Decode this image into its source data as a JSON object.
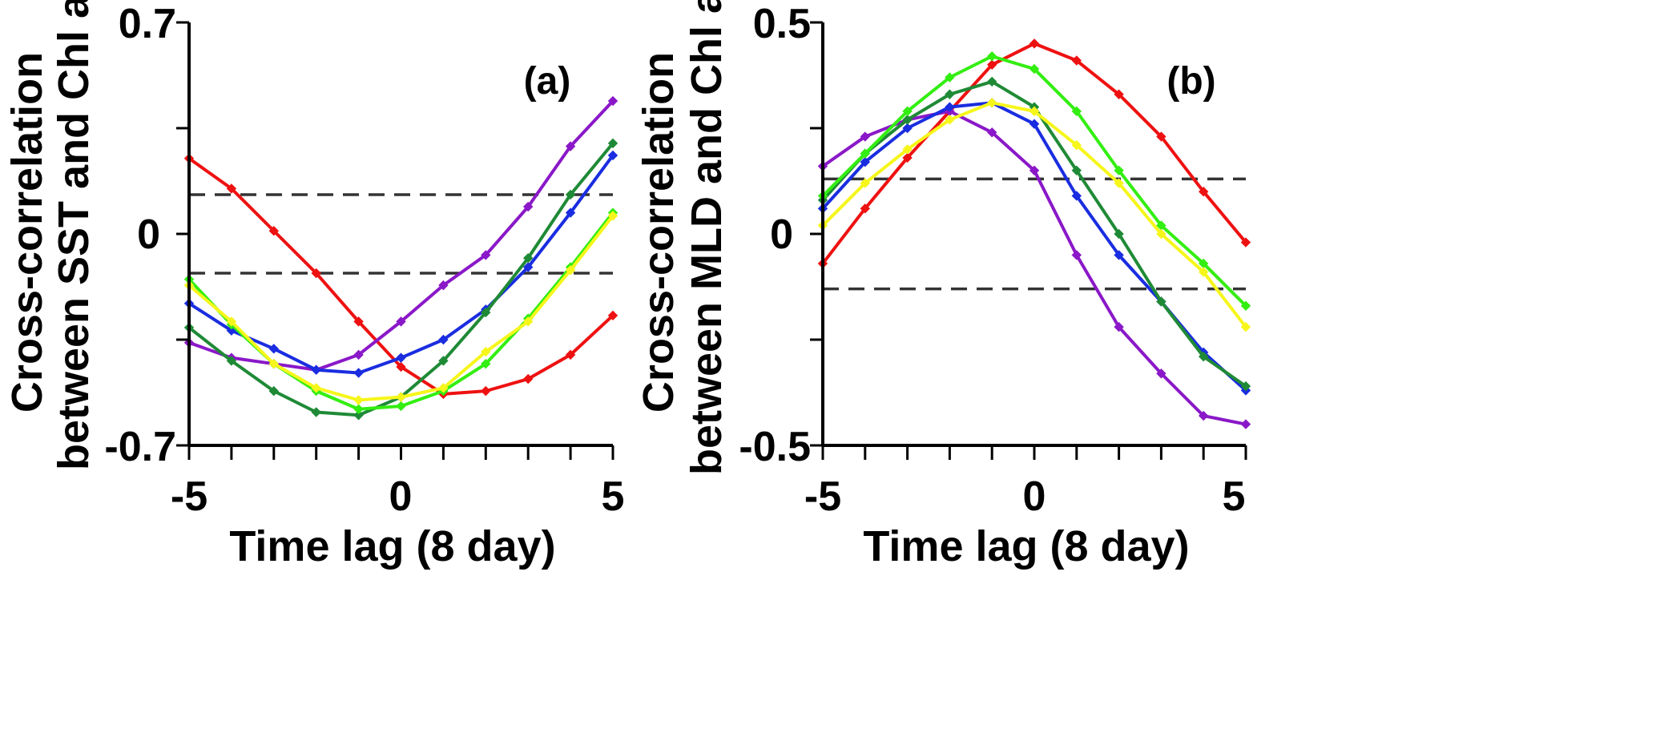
{
  "chart_data": [
    {
      "type": "line",
      "panel_label": "(a)",
      "xlabel": "Time lag (8 day)",
      "ylabel_line1": "Cross-correlation",
      "ylabel_line2": "between SST and Chl a",
      "x": [
        -5,
        -4,
        -3,
        -2,
        -1,
        0,
        1,
        2,
        3,
        4,
        5
      ],
      "xlim": [
        -5,
        5
      ],
      "ylim": [
        -0.7,
        0.7
      ],
      "xticks": [
        "-5",
        "0",
        "5"
      ],
      "yticks": [
        "0.7",
        "0",
        "-0.7"
      ],
      "reference_lines": [
        0.13,
        -0.13
      ],
      "series": [
        {
          "name": "red",
          "color": "#ee1111",
          "values": [
            0.25,
            0.15,
            0.01,
            -0.13,
            -0.29,
            -0.44,
            -0.53,
            -0.52,
            -0.48,
            -0.4,
            -0.27
          ]
        },
        {
          "name": "purple",
          "color": "#8a18c8",
          "values": [
            -0.36,
            -0.41,
            -0.43,
            -0.45,
            -0.4,
            -0.29,
            -0.17,
            -0.07,
            0.09,
            0.29,
            0.44
          ]
        },
        {
          "name": "blue",
          "color": "#1a2de0",
          "values": [
            -0.23,
            -0.32,
            -0.38,
            -0.45,
            -0.46,
            -0.41,
            -0.35,
            -0.25,
            -0.11,
            0.07,
            0.26
          ]
        },
        {
          "name": "green",
          "color": "#1f8a36",
          "values": [
            -0.31,
            -0.42,
            -0.52,
            -0.59,
            -0.6,
            -0.54,
            -0.42,
            -0.26,
            -0.08,
            0.13,
            0.3
          ]
        },
        {
          "name": "lime",
          "color": "#33ee11",
          "values": [
            -0.15,
            -0.3,
            -0.43,
            -0.52,
            -0.58,
            -0.57,
            -0.52,
            -0.43,
            -0.28,
            -0.11,
            0.07
          ]
        },
        {
          "name": "yellow",
          "color": "#f6f61b",
          "values": [
            -0.17,
            -0.29,
            -0.43,
            -0.51,
            -0.55,
            -0.54,
            -0.51,
            -0.39,
            -0.29,
            -0.12,
            0.06
          ]
        }
      ]
    },
    {
      "type": "line",
      "panel_label": "(b)",
      "xlabel": "Time lag (8 day)",
      "ylabel_line1": "Cross-correlation",
      "ylabel_line2": "between MLD and Chl a",
      "x": [
        -5,
        -4,
        -3,
        -2,
        -1,
        0,
        1,
        2,
        3,
        4,
        5
      ],
      "xlim": [
        -5,
        5
      ],
      "ylim": [
        -0.5,
        0.5
      ],
      "xticks": [
        "-5",
        "0",
        "5"
      ],
      "yticks": [
        "0.5",
        "0",
        "-0.5"
      ],
      "reference_lines": [
        0.13,
        -0.13
      ],
      "series": [
        {
          "name": "red",
          "color": "#ee1111",
          "values": [
            -0.07,
            0.06,
            0.18,
            0.29,
            0.4,
            0.45,
            0.41,
            0.33,
            0.23,
            0.1,
            -0.02
          ]
        },
        {
          "name": "purple",
          "color": "#8a18c8",
          "values": [
            0.16,
            0.23,
            0.27,
            0.29,
            0.24,
            0.15,
            -0.05,
            -0.22,
            -0.33,
            -0.43,
            -0.45
          ]
        },
        {
          "name": "blue",
          "color": "#1a2de0",
          "values": [
            0.06,
            0.17,
            0.25,
            0.3,
            0.31,
            0.26,
            0.09,
            -0.05,
            -0.16,
            -0.28,
            -0.37
          ]
        },
        {
          "name": "green",
          "color": "#1f8a36",
          "values": [
            0.08,
            0.19,
            0.27,
            0.33,
            0.36,
            0.3,
            0.15,
            0.0,
            -0.16,
            -0.29,
            -0.36
          ]
        },
        {
          "name": "lime",
          "color": "#33ee11",
          "values": [
            0.09,
            0.19,
            0.29,
            0.37,
            0.42,
            0.39,
            0.29,
            0.15,
            0.02,
            -0.07,
            -0.17
          ]
        },
        {
          "name": "yellow",
          "color": "#f6f61b",
          "values": [
            0.02,
            0.12,
            0.2,
            0.27,
            0.31,
            0.29,
            0.21,
            0.12,
            0.0,
            -0.09,
            -0.22
          ]
        }
      ]
    }
  ]
}
